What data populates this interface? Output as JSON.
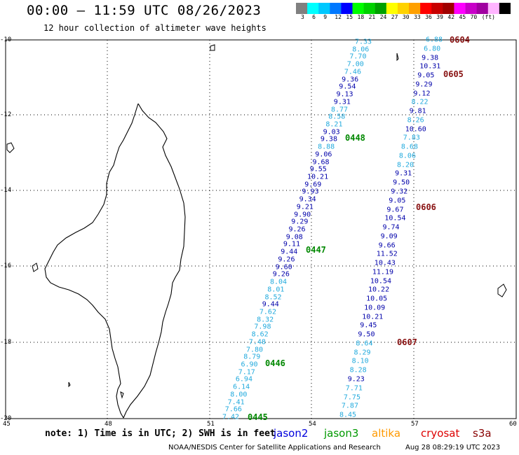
{
  "header": {
    "title": "00:00 – 11:59 UTC 08/26/2023",
    "subtitle": "12 hour collection of altimeter wave heights"
  },
  "color_scale": {
    "colors": [
      "#808080",
      "#00ffff",
      "#00c8ff",
      "#0078ff",
      "#0000ff",
      "#00ff00",
      "#00d200",
      "#00a000",
      "#ffff00",
      "#ffd200",
      "#ffa000",
      "#ff0000",
      "#c80000",
      "#a00000",
      "#ff00ff",
      "#c800c8",
      "#a000a0",
      "#ffb4ff",
      "#000000"
    ],
    "labels": [
      "3",
      "6",
      "9",
      "12",
      "15",
      "18",
      "21",
      "24",
      "27",
      "30",
      "33",
      "36",
      "39",
      "42",
      "45",
      "70",
      "(ft)"
    ]
  },
  "axes": {
    "lat_labels": [
      "-10",
      "-12",
      "-14",
      "-16",
      "-18",
      "-20"
    ],
    "lon_labels": [
      "45",
      "48",
      "51",
      "54",
      "57",
      "60"
    ]
  },
  "tracks": [
    {
      "values": [
        "7.33",
        "8.06",
        "7.70",
        "7.00",
        "7.46",
        "9.36",
        "9.54",
        "9.13",
        "9.31",
        "8.77",
        "8.58",
        "8.21",
        "9.03",
        "9.38",
        "8.88",
        "9.06",
        "9.68",
        "9.55",
        "10.21",
        "9.69",
        "9.93",
        "9.34",
        "9.21",
        "9.90",
        "9.29",
        "9.26",
        "9.08",
        "9.11",
        "9.44",
        "9.26",
        "9.60",
        "9.26",
        "8.04",
        "8.01",
        "8.52",
        "9.44",
        "7.62",
        "8.32",
        "7.98",
        "8.62",
        "7.48",
        "7.80",
        "8.79",
        "6.90",
        "7.17",
        "6.94",
        "6.14",
        "8.00",
        "7.41",
        "7.66",
        "7.42"
      ],
      "shades": [
        "L",
        "L",
        "L",
        "L",
        "L",
        "D",
        "D",
        "D",
        "D",
        "L",
        "L",
        "L",
        "D",
        "D",
        "L",
        "D",
        "D",
        "D",
        "D",
        "D",
        "D",
        "D",
        "D",
        "D",
        "D",
        "D",
        "D",
        "D",
        "D",
        "D",
        "D",
        "D",
        "L",
        "L",
        "L",
        "D",
        "L",
        "L",
        "L",
        "L",
        "L",
        "L",
        "L",
        "L",
        "L",
        "L",
        "L",
        "L",
        "L",
        "L",
        "L"
      ]
    },
    {
      "values": [
        "6.88",
        "6.80",
        "9.38",
        "10.31",
        "9.05",
        "9.29",
        "9.12",
        "8.22",
        "9.81",
        "8.26",
        "10.60",
        "7.83",
        "8.68",
        "8.06",
        "8.20",
        "9.31",
        "9.50",
        "9.32",
        "9.05",
        "9.67",
        "10.54",
        "9.74",
        "9.09",
        "9.66",
        "11.52",
        "10.43",
        "11.19",
        "10.54",
        "10.22",
        "10.05",
        "10.09",
        "10.21",
        "9.45",
        "9.50",
        "8.64",
        "8.29",
        "8.10",
        "8.28",
        "9.23",
        "7.71",
        "7.75",
        "7.87",
        "8.45"
      ],
      "shades": [
        "L",
        "L",
        "D",
        "D",
        "D",
        "D",
        "D",
        "L",
        "D",
        "L",
        "D",
        "L",
        "L",
        "L",
        "L",
        "D",
        "D",
        "D",
        "D",
        "D",
        "D",
        "D",
        "D",
        "D",
        "D",
        "D",
        "D",
        "D",
        "D",
        "D",
        "D",
        "D",
        "D",
        "D",
        "L",
        "L",
        "L",
        "L",
        "D",
        "L",
        "L",
        "L",
        "L"
      ]
    }
  ],
  "time_markers": [
    {
      "label": "0448",
      "color": "green"
    },
    {
      "label": "0447",
      "color": "green"
    },
    {
      "label": "0446",
      "color": "green"
    },
    {
      "label": "0445",
      "color": "green"
    },
    {
      "label": "0604",
      "color": "red"
    },
    {
      "label": "0605",
      "color": "red"
    },
    {
      "label": "0606",
      "color": "red"
    },
    {
      "label": "0607",
      "color": "red"
    }
  ],
  "footer": {
    "note": "note: 1) Time is in UTC; 2) SWH is in feet",
    "satellites": [
      {
        "name": "jason2",
        "color": "#0000dd"
      },
      {
        "name": "jason3",
        "color": "#009900"
      },
      {
        "name": "altika",
        "color": "#ff9900"
      },
      {
        "name": "cryosat",
        "color": "#dd0000"
      },
      {
        "name": "s3a",
        "color": "#880000"
      }
    ],
    "credit": "NOAA/NESDIS Center for Satellite Applications and Research",
    "timestamp": "Aug 28 08:29:19 UTC 2023"
  }
}
